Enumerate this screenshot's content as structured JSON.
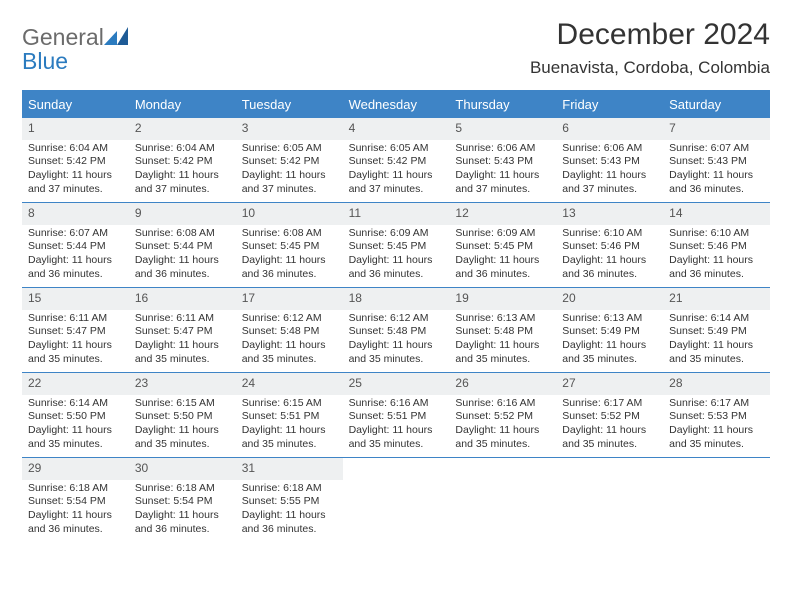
{
  "colors": {
    "accent": "#3e84c6",
    "header_bg": "#3e84c6",
    "header_text": "#ffffff",
    "daynum_bg": "#eef0f1",
    "text": "#333333",
    "logo_gray": "#6b6b6b",
    "logo_blue": "#2b7bbf"
  },
  "logo": {
    "word1": "General",
    "word2": "Blue"
  },
  "title": "December 2024",
  "location": "Buenavista, Cordoba, Colombia",
  "days_of_week": [
    "Sunday",
    "Monday",
    "Tuesday",
    "Wednesday",
    "Thursday",
    "Friday",
    "Saturday"
  ],
  "weeks": [
    [
      {
        "n": "1",
        "sunrise": "Sunrise: 6:04 AM",
        "sunset": "Sunset: 5:42 PM",
        "day1": "Daylight: 11 hours",
        "day2": "and 37 minutes."
      },
      {
        "n": "2",
        "sunrise": "Sunrise: 6:04 AM",
        "sunset": "Sunset: 5:42 PM",
        "day1": "Daylight: 11 hours",
        "day2": "and 37 minutes."
      },
      {
        "n": "3",
        "sunrise": "Sunrise: 6:05 AM",
        "sunset": "Sunset: 5:42 PM",
        "day1": "Daylight: 11 hours",
        "day2": "and 37 minutes."
      },
      {
        "n": "4",
        "sunrise": "Sunrise: 6:05 AM",
        "sunset": "Sunset: 5:42 PM",
        "day1": "Daylight: 11 hours",
        "day2": "and 37 minutes."
      },
      {
        "n": "5",
        "sunrise": "Sunrise: 6:06 AM",
        "sunset": "Sunset: 5:43 PM",
        "day1": "Daylight: 11 hours",
        "day2": "and 37 minutes."
      },
      {
        "n": "6",
        "sunrise": "Sunrise: 6:06 AM",
        "sunset": "Sunset: 5:43 PM",
        "day1": "Daylight: 11 hours",
        "day2": "and 37 minutes."
      },
      {
        "n": "7",
        "sunrise": "Sunrise: 6:07 AM",
        "sunset": "Sunset: 5:43 PM",
        "day1": "Daylight: 11 hours",
        "day2": "and 36 minutes."
      }
    ],
    [
      {
        "n": "8",
        "sunrise": "Sunrise: 6:07 AM",
        "sunset": "Sunset: 5:44 PM",
        "day1": "Daylight: 11 hours",
        "day2": "and 36 minutes."
      },
      {
        "n": "9",
        "sunrise": "Sunrise: 6:08 AM",
        "sunset": "Sunset: 5:44 PM",
        "day1": "Daylight: 11 hours",
        "day2": "and 36 minutes."
      },
      {
        "n": "10",
        "sunrise": "Sunrise: 6:08 AM",
        "sunset": "Sunset: 5:45 PM",
        "day1": "Daylight: 11 hours",
        "day2": "and 36 minutes."
      },
      {
        "n": "11",
        "sunrise": "Sunrise: 6:09 AM",
        "sunset": "Sunset: 5:45 PM",
        "day1": "Daylight: 11 hours",
        "day2": "and 36 minutes."
      },
      {
        "n": "12",
        "sunrise": "Sunrise: 6:09 AM",
        "sunset": "Sunset: 5:45 PM",
        "day1": "Daylight: 11 hours",
        "day2": "and 36 minutes."
      },
      {
        "n": "13",
        "sunrise": "Sunrise: 6:10 AM",
        "sunset": "Sunset: 5:46 PM",
        "day1": "Daylight: 11 hours",
        "day2": "and 36 minutes."
      },
      {
        "n": "14",
        "sunrise": "Sunrise: 6:10 AM",
        "sunset": "Sunset: 5:46 PM",
        "day1": "Daylight: 11 hours",
        "day2": "and 36 minutes."
      }
    ],
    [
      {
        "n": "15",
        "sunrise": "Sunrise: 6:11 AM",
        "sunset": "Sunset: 5:47 PM",
        "day1": "Daylight: 11 hours",
        "day2": "and 35 minutes."
      },
      {
        "n": "16",
        "sunrise": "Sunrise: 6:11 AM",
        "sunset": "Sunset: 5:47 PM",
        "day1": "Daylight: 11 hours",
        "day2": "and 35 minutes."
      },
      {
        "n": "17",
        "sunrise": "Sunrise: 6:12 AM",
        "sunset": "Sunset: 5:48 PM",
        "day1": "Daylight: 11 hours",
        "day2": "and 35 minutes."
      },
      {
        "n": "18",
        "sunrise": "Sunrise: 6:12 AM",
        "sunset": "Sunset: 5:48 PM",
        "day1": "Daylight: 11 hours",
        "day2": "and 35 minutes."
      },
      {
        "n": "19",
        "sunrise": "Sunrise: 6:13 AM",
        "sunset": "Sunset: 5:48 PM",
        "day1": "Daylight: 11 hours",
        "day2": "and 35 minutes."
      },
      {
        "n": "20",
        "sunrise": "Sunrise: 6:13 AM",
        "sunset": "Sunset: 5:49 PM",
        "day1": "Daylight: 11 hours",
        "day2": "and 35 minutes."
      },
      {
        "n": "21",
        "sunrise": "Sunrise: 6:14 AM",
        "sunset": "Sunset: 5:49 PM",
        "day1": "Daylight: 11 hours",
        "day2": "and 35 minutes."
      }
    ],
    [
      {
        "n": "22",
        "sunrise": "Sunrise: 6:14 AM",
        "sunset": "Sunset: 5:50 PM",
        "day1": "Daylight: 11 hours",
        "day2": "and 35 minutes."
      },
      {
        "n": "23",
        "sunrise": "Sunrise: 6:15 AM",
        "sunset": "Sunset: 5:50 PM",
        "day1": "Daylight: 11 hours",
        "day2": "and 35 minutes."
      },
      {
        "n": "24",
        "sunrise": "Sunrise: 6:15 AM",
        "sunset": "Sunset: 5:51 PM",
        "day1": "Daylight: 11 hours",
        "day2": "and 35 minutes."
      },
      {
        "n": "25",
        "sunrise": "Sunrise: 6:16 AM",
        "sunset": "Sunset: 5:51 PM",
        "day1": "Daylight: 11 hours",
        "day2": "and 35 minutes."
      },
      {
        "n": "26",
        "sunrise": "Sunrise: 6:16 AM",
        "sunset": "Sunset: 5:52 PM",
        "day1": "Daylight: 11 hours",
        "day2": "and 35 minutes."
      },
      {
        "n": "27",
        "sunrise": "Sunrise: 6:17 AM",
        "sunset": "Sunset: 5:52 PM",
        "day1": "Daylight: 11 hours",
        "day2": "and 35 minutes."
      },
      {
        "n": "28",
        "sunrise": "Sunrise: 6:17 AM",
        "sunset": "Sunset: 5:53 PM",
        "day1": "Daylight: 11 hours",
        "day2": "and 35 minutes."
      }
    ],
    [
      {
        "n": "29",
        "sunrise": "Sunrise: 6:18 AM",
        "sunset": "Sunset: 5:54 PM",
        "day1": "Daylight: 11 hours",
        "day2": "and 36 minutes."
      },
      {
        "n": "30",
        "sunrise": "Sunrise: 6:18 AM",
        "sunset": "Sunset: 5:54 PM",
        "day1": "Daylight: 11 hours",
        "day2": "and 36 minutes."
      },
      {
        "n": "31",
        "sunrise": "Sunrise: 6:18 AM",
        "sunset": "Sunset: 5:55 PM",
        "day1": "Daylight: 11 hours",
        "day2": "and 36 minutes."
      },
      {
        "empty": true
      },
      {
        "empty": true
      },
      {
        "empty": true
      },
      {
        "empty": true
      }
    ]
  ]
}
